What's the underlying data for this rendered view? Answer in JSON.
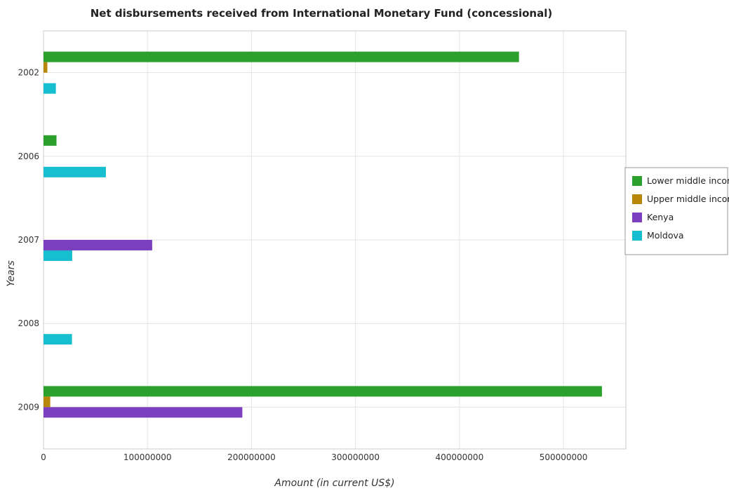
{
  "chart_data": {
    "type": "bar",
    "orientation": "horizontal",
    "title": "Net disbursements received from International Monetary Fund (concessional)",
    "xlabel": "Amount (in current US$)",
    "ylabel": "Years",
    "categories": [
      "2002",
      "2006",
      "2007",
      "2008",
      "2009"
    ],
    "xlim": [
      0,
      560000000
    ],
    "xticks": [
      0,
      100000000,
      200000000,
      300000000,
      400000000,
      500000000
    ],
    "xtick_labels": [
      "0",
      "100000000",
      "200000000",
      "300000000",
      "400000000",
      "500000000"
    ],
    "grid": true,
    "legend_position": "right",
    "series": [
      {
        "name": "Lower middle income",
        "color": "#2ca02c",
        "values": [
          457200000,
          12500000,
          0,
          0,
          537000000
        ]
      },
      {
        "name": "Upper middle income",
        "color": "#b8860b",
        "values": [
          3700000,
          0,
          0,
          0,
          6500000
        ]
      },
      {
        "name": "Kenya",
        "color": "#7b3fbf",
        "values": [
          0,
          0,
          104500000,
          0,
          191200000
        ]
      },
      {
        "name": "Moldova",
        "color": "#17becf",
        "values": [
          11900000,
          60000000,
          27600000,
          27400000,
          0
        ]
      }
    ]
  }
}
